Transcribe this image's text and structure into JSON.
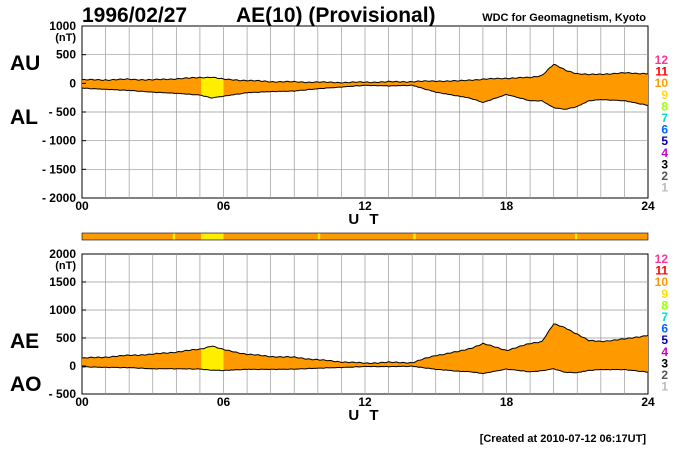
{
  "header": {
    "date": "1996/02/27",
    "title": "AE(10) (Provisional)",
    "source": "WDC for Geomagnetism, Kyoto"
  },
  "footer": {
    "created": "[Created at 2010-07-12 06:17UT]"
  },
  "colors": {
    "fill_main": "#ff9900",
    "fill_highlight": "#ffee00",
    "outline": "#000000",
    "grid": "#999999"
  },
  "level_scale": [
    {
      "label": "12",
      "color": "#ff3399"
    },
    {
      "label": "11",
      "color": "#ff0000"
    },
    {
      "label": "10",
      "color": "#ff9900"
    },
    {
      "label": "9",
      "color": "#ffdd00"
    },
    {
      "label": "8",
      "color": "#99ff00"
    },
    {
      "label": "7",
      "color": "#00dddd"
    },
    {
      "label": "6",
      "color": "#0066ff"
    },
    {
      "label": "5",
      "color": "#0000aa"
    },
    {
      "label": "4",
      "color": "#cc00cc"
    },
    {
      "label": "3",
      "color": "#000000"
    },
    {
      "label": "2",
      "color": "#555555"
    },
    {
      "label": "1",
      "color": "#bbbbbb"
    }
  ],
  "station_bar": {
    "highlight_ranges_hours": [
      [
        3.85,
        3.95
      ],
      [
        5.05,
        6.0
      ],
      [
        10.0,
        10.1
      ],
      [
        14.05,
        14.15
      ],
      [
        20.9,
        21.0
      ]
    ]
  },
  "chart_data": [
    {
      "type": "area",
      "panel": "AU/AL",
      "series_labels": [
        "AU",
        "AL"
      ],
      "ylabel": "(nT)",
      "xlabel": "U T",
      "xlim": [
        0,
        24
      ],
      "ylim": [
        -2000,
        1000
      ],
      "yticks": [
        1000,
        500,
        0,
        -500,
        -1000,
        -1500,
        -2000
      ],
      "ytick_labels": [
        "1000",
        "500",
        "0",
        "- 500",
        "- 1000",
        "- 1500",
        "- 2000"
      ],
      "xticks": [
        0,
        6,
        12,
        18,
        24
      ],
      "xtick_labels": [
        "00",
        "06",
        "12",
        "18",
        "24"
      ],
      "grid": true,
      "highlight_ranges_hours": [
        [
          5.05,
          6.0
        ]
      ],
      "series": [
        {
          "name": "AU",
          "x": [
            0,
            1,
            2,
            3,
            4,
            5,
            5.5,
            6,
            7,
            8,
            9,
            10,
            11,
            12,
            13,
            14,
            15,
            16,
            16.5,
            17,
            18,
            19,
            19.5,
            20,
            20.5,
            21,
            21.5,
            22,
            23,
            24
          ],
          "values": [
            60,
            60,
            70,
            60,
            80,
            100,
            110,
            70,
            50,
            30,
            25,
            20,
            15,
            20,
            25,
            30,
            40,
            40,
            60,
            70,
            90,
            100,
            140,
            330,
            230,
            170,
            150,
            160,
            180,
            170
          ]
        },
        {
          "name": "AL",
          "x": [
            0,
            1,
            2,
            3,
            4,
            5,
            5.5,
            6,
            7,
            8,
            9,
            10,
            11,
            12,
            13,
            14,
            15,
            16,
            16.5,
            17,
            18,
            19,
            19.5,
            20,
            20.5,
            21,
            21.5,
            22,
            23,
            24
          ],
          "values": [
            -80,
            -100,
            -120,
            -150,
            -170,
            -200,
            -250,
            -220,
            -160,
            -140,
            -130,
            -90,
            -60,
            -30,
            -40,
            -30,
            -150,
            -220,
            -260,
            -330,
            -190,
            -300,
            -300,
            -420,
            -450,
            -400,
            -300,
            -280,
            -300,
            -380
          ]
        }
      ]
    },
    {
      "type": "area",
      "panel": "AE/AO",
      "series_labels": [
        "AE",
        "AO"
      ],
      "ylabel": "(nT)",
      "xlabel": "U T",
      "xlim": [
        0,
        24
      ],
      "ylim": [
        -500,
        2000
      ],
      "yticks": [
        2000,
        1500,
        1000,
        500,
        0,
        -500
      ],
      "ytick_labels": [
        "2000",
        "1500",
        "1000",
        "500",
        "0",
        "- 500"
      ],
      "xticks": [
        0,
        6,
        12,
        18,
        24
      ],
      "xtick_labels": [
        "00",
        "06",
        "12",
        "18",
        "24"
      ],
      "grid": true,
      "highlight_ranges_hours": [
        [
          5.05,
          6.0
        ]
      ],
      "series": [
        {
          "name": "AE",
          "x": [
            0,
            1,
            2,
            3,
            4,
            5,
            5.5,
            6,
            7,
            8,
            9,
            10,
            11,
            12,
            13,
            14,
            15,
            16,
            16.5,
            17,
            18,
            19,
            19.5,
            20,
            20.5,
            21,
            21.5,
            22,
            23,
            24
          ],
          "values": [
            140,
            160,
            190,
            210,
            250,
            300,
            360,
            290,
            210,
            170,
            155,
            110,
            75,
            50,
            65,
            60,
            190,
            260,
            320,
            400,
            280,
            400,
            440,
            750,
            680,
            570,
            450,
            440,
            480,
            550
          ]
        },
        {
          "name": "AO",
          "x": [
            0,
            1,
            2,
            3,
            4,
            5,
            5.5,
            6,
            7,
            8,
            9,
            10,
            11,
            12,
            13,
            14,
            15,
            16,
            16.5,
            17,
            18,
            19,
            19.5,
            20,
            20.5,
            21,
            21.5,
            22,
            23,
            24
          ],
          "values": [
            -10,
            -20,
            -25,
            -45,
            -45,
            -50,
            -70,
            -75,
            -55,
            -55,
            -52,
            -35,
            -22,
            -5,
            -7,
            0,
            -55,
            -90,
            -100,
            -130,
            -50,
            -100,
            -80,
            -45,
            -110,
            -115,
            -75,
            -60,
            -60,
            -105
          ]
        }
      ]
    }
  ]
}
